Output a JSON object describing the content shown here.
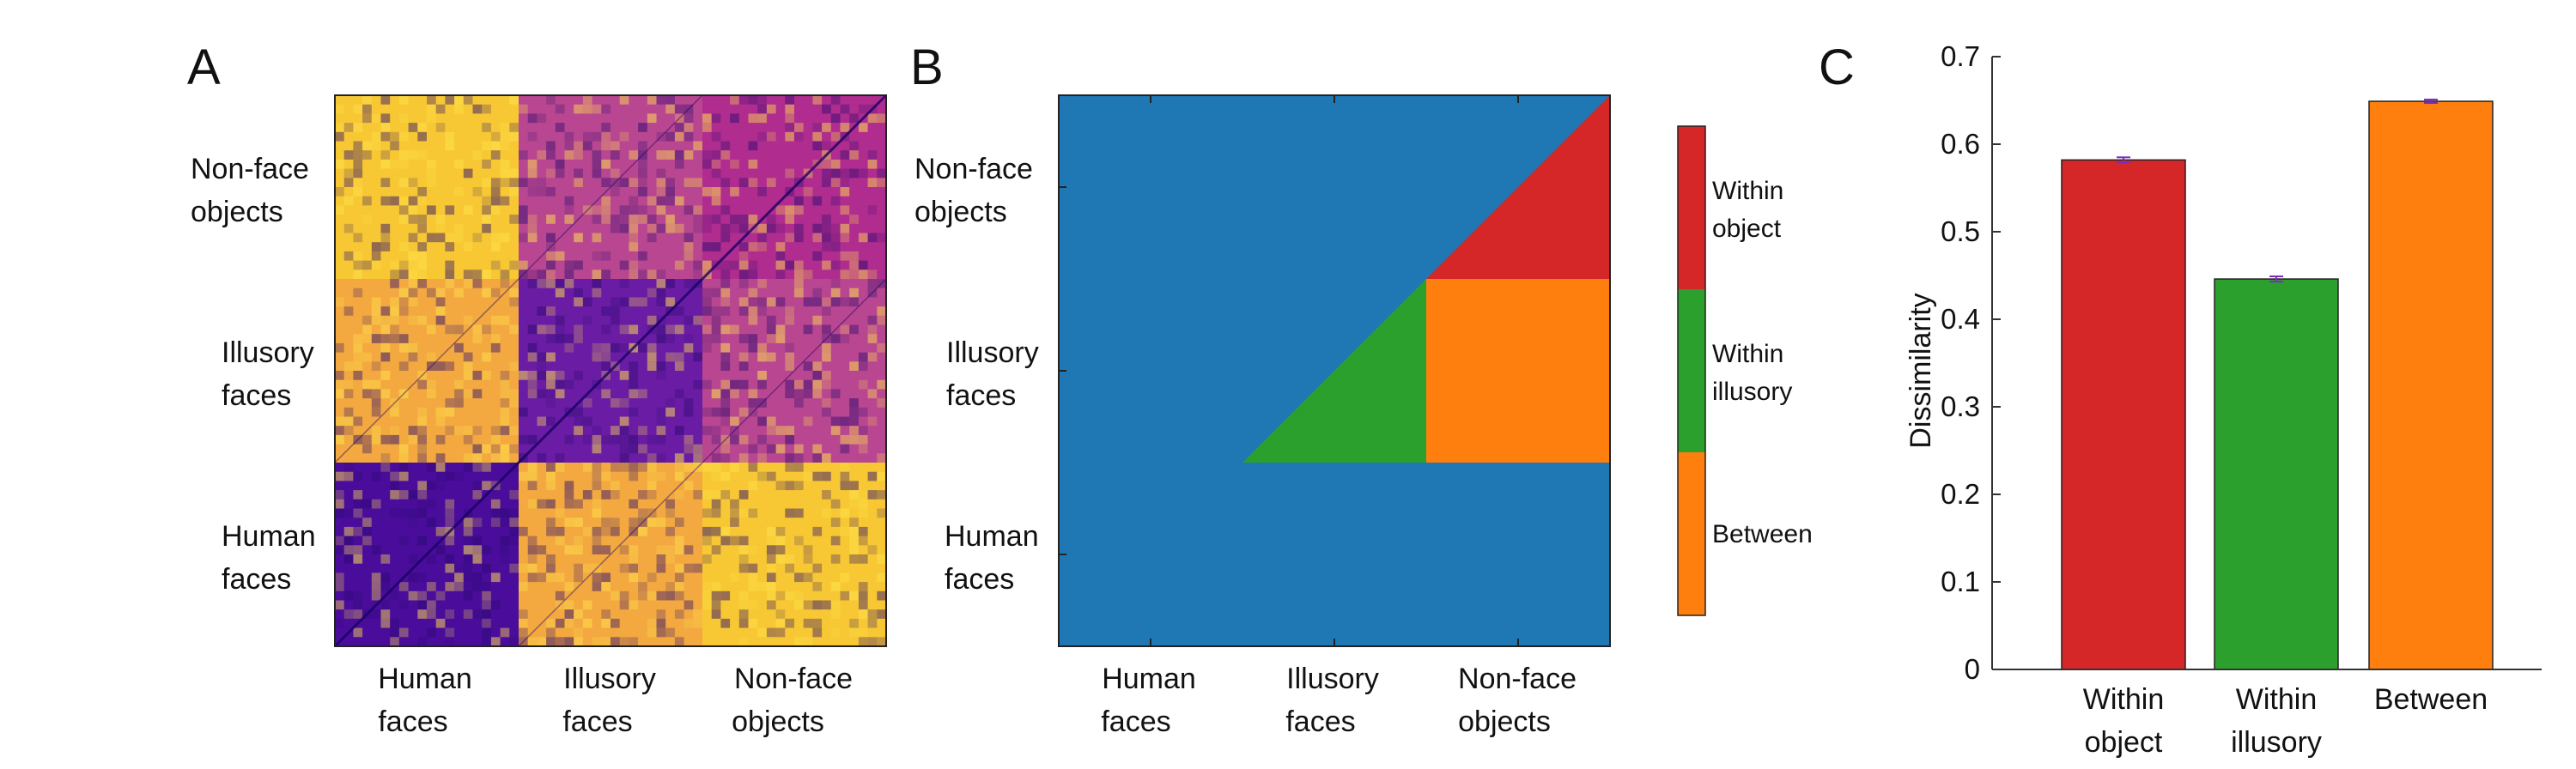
{
  "panels": {
    "a": {
      "letter": "A",
      "matrix": {
        "groups": [
          "Human faces",
          "Illusory faces",
          "Non-face objects"
        ],
        "group_ticks": [
          [
            "Human",
            "faces"
          ],
          [
            "Illusory",
            "faces"
          ],
          [
            "Non-face",
            "objects"
          ]
        ],
        "block_colors": {
          "within_human": "#4a0c9b",
          "within_illusory": "#6a1ca4",
          "within_object": "#b02c8f",
          "human_vs_illusory": "#f3a940",
          "human_vs_object": "#f7c833",
          "illusory_vs_object": "#b94690",
          "diagonal": "#1a0066"
        }
      }
    },
    "b": {
      "letter": "B",
      "group_ticks": [
        [
          "Human",
          "faces"
        ],
        [
          "Illusory",
          "faces"
        ],
        [
          "Non-face",
          "objects"
        ]
      ],
      "legend": [
        {
          "label_lines": [
            "Within",
            "object"
          ],
          "color": "#d62728"
        },
        {
          "label_lines": [
            "Within",
            "illusory"
          ],
          "color": "#2ca02c"
        },
        {
          "label_lines": [
            "Between"
          ],
          "color": "#ff7f0e"
        }
      ],
      "background_color": "#1f77b4"
    },
    "c": {
      "letter": "C"
    }
  },
  "chart_data": {
    "type": "bar",
    "categories": [
      "Within object",
      "Within illusory",
      "Between"
    ],
    "category_ticks": [
      [
        "Within",
        "object"
      ],
      [
        "Within",
        "illusory"
      ],
      [
        "Between"
      ]
    ],
    "values": [
      0.582,
      0.446,
      0.649
    ],
    "errors": [
      0.003,
      0.003,
      0.002
    ],
    "colors": [
      "#d62728",
      "#2ca02c",
      "#ff7f0e"
    ],
    "error_color": "#7b2cbf",
    "ylabel": "Dissimilarity",
    "ylim": [
      0,
      0.7
    ],
    "yticks": [
      0,
      0.1,
      0.2,
      0.3,
      0.4,
      0.5,
      0.6,
      0.7
    ],
    "grid": false
  }
}
